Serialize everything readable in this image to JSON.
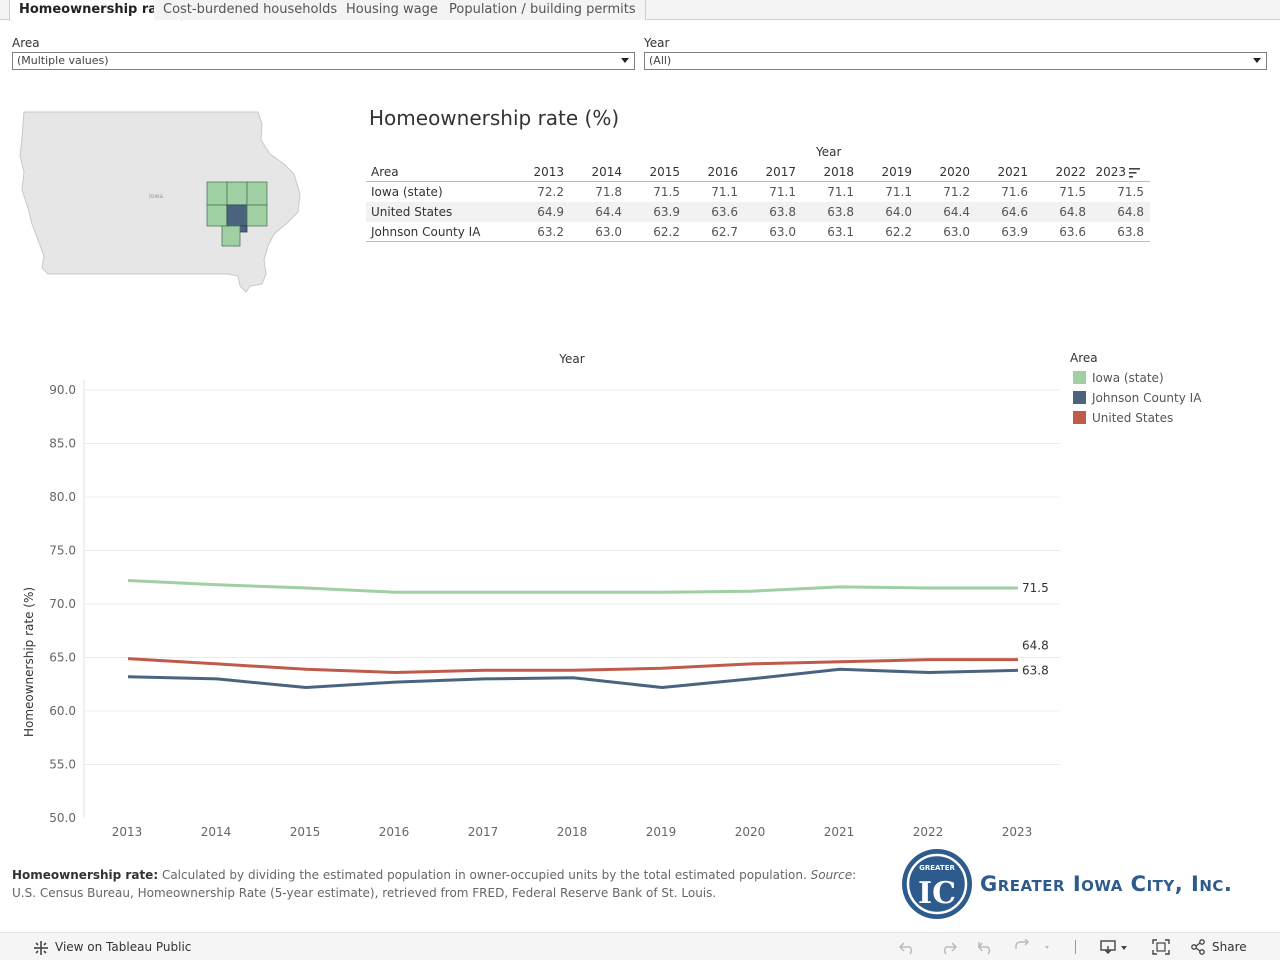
{
  "tabs": [
    {
      "label": "Homeownership rate",
      "active": true
    },
    {
      "label": "Cost-burdened households",
      "active": false
    },
    {
      "label": "Housing wage",
      "active": false
    },
    {
      "label": "Population / building permits",
      "active": false
    }
  ],
  "filters": {
    "area": {
      "label": "Area",
      "value": "(Multiple values)"
    },
    "year": {
      "label": "Year",
      "value": "(All)"
    }
  },
  "map": {
    "state_label": "Iowa"
  },
  "table": {
    "title": "Homeownership rate (%)",
    "column_group": "Year",
    "row_header": "Area",
    "years": [
      "2013",
      "2014",
      "2015",
      "2016",
      "2017",
      "2018",
      "2019",
      "2020",
      "2021",
      "2022",
      "2023"
    ],
    "rows": [
      {
        "area": "Iowa (state)",
        "values": [
          "72.2",
          "71.8",
          "71.5",
          "71.1",
          "71.1",
          "71.1",
          "71.1",
          "71.2",
          "71.6",
          "71.5",
          "71.5"
        ]
      },
      {
        "area": "United States",
        "values": [
          "64.9",
          "64.4",
          "63.9",
          "63.6",
          "63.8",
          "63.8",
          "64.0",
          "64.4",
          "64.6",
          "64.8",
          "64.8"
        ]
      },
      {
        "area": "Johnson County IA",
        "values": [
          "63.2",
          "63.0",
          "62.2",
          "62.7",
          "63.0",
          "63.1",
          "62.2",
          "63.0",
          "63.9",
          "63.6",
          "63.8"
        ]
      }
    ]
  },
  "chart_data": {
    "type": "line",
    "title": "Year",
    "xlabel": "",
    "ylabel": "Homeownership rate (%)",
    "x": [
      2013,
      2014,
      2015,
      2016,
      2017,
      2018,
      2019,
      2020,
      2021,
      2022,
      2023
    ],
    "ylim": [
      50,
      90
    ],
    "yticks": [
      "50.0",
      "55.0",
      "60.0",
      "65.0",
      "70.0",
      "75.0",
      "80.0",
      "85.0",
      "90.0"
    ],
    "grid": true,
    "legend_title": "Area",
    "legend_position": "right",
    "series": [
      {
        "name": "Iowa (state)",
        "color": "#9fcfa3",
        "values": [
          72.2,
          71.8,
          71.5,
          71.1,
          71.1,
          71.1,
          71.1,
          71.2,
          71.6,
          71.5,
          71.5
        ],
        "end_label": "71.5"
      },
      {
        "name": "Johnson County IA",
        "color": "#4a6480",
        "values": [
          63.2,
          63.0,
          62.2,
          62.7,
          63.0,
          63.1,
          62.2,
          63.0,
          63.9,
          63.6,
          63.8
        ],
        "end_label": "63.8"
      },
      {
        "name": "United States",
        "color": "#bf5b4a",
        "values": [
          64.9,
          64.4,
          63.9,
          63.6,
          63.8,
          63.8,
          64.0,
          64.4,
          64.6,
          64.8,
          64.8
        ],
        "end_label": "64.8"
      }
    ]
  },
  "note": {
    "bold": "Homeownership rate:",
    "text1": " Calculated by dividing the estimated population in owner-occupied units by the total estimated population. ",
    "italic": "Source",
    "text2": ": U.S. Census Bureau, Homeownership Rate (5-year estimate), retrieved from FRED, Federal Reserve Bank of St. Louis."
  },
  "logo": {
    "text": "Greater Iowa City, Inc.",
    "badge_top": "GREATER",
    "badge_letters": "IC",
    "color": "#2e5b8e"
  },
  "toolbar": {
    "view_label": "View on Tableau Public",
    "share_label": "Share"
  }
}
